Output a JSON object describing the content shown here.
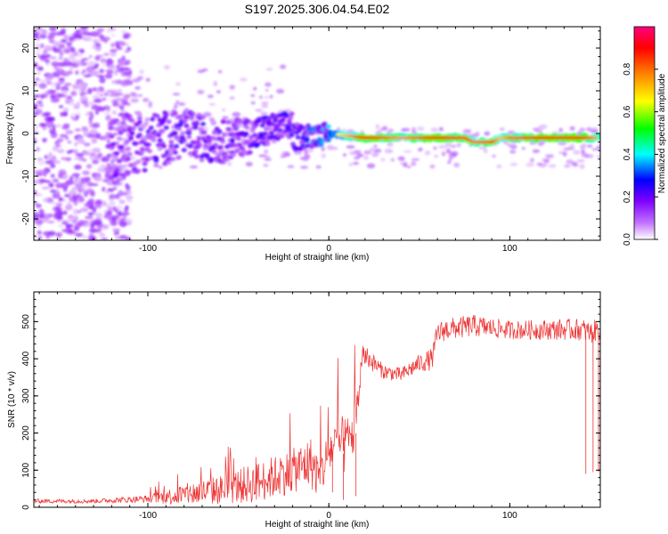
{
  "title": "S197.2025.306.04.54.E02",
  "chart_data": [
    {
      "type": "heatmap",
      "title": "S197.2025.306.04.54.E02",
      "xlabel": "Height of straight line (km)",
      "ylabel": "Frequency (Hz)",
      "xlim": [
        -163,
        150
      ],
      "ylim": [
        -25,
        25
      ],
      "xticks": [
        -100,
        0,
        100
      ],
      "yticks": [
        -20,
        -10,
        0,
        10,
        20
      ],
      "colorbar": {
        "label": "Normalized spectral amplitude",
        "range": [
          0.0,
          1.0
        ],
        "ticks": [
          0.0,
          0.2,
          0.4,
          0.6,
          0.8
        ],
        "tick_labels": [
          "0.0",
          "0.2",
          "0.4",
          "0.6",
          "0.8"
        ],
        "colors": [
          "#ffffff",
          "#a000ff",
          "#0000ff",
          "#00ffff",
          "#00ff00",
          "#ffff00",
          "#ff8000",
          "#ff0000",
          "#ff0080"
        ]
      },
      "ridge": {
        "x": [
          -120,
          -100,
          -80,
          -60,
          -40,
          -20,
          0,
          20,
          40,
          60,
          75,
          80,
          90,
          95,
          100,
          110,
          120,
          140,
          148
        ],
        "frequency": [
          -1,
          -1,
          0,
          -3,
          -2,
          -1,
          0,
          -1,
          -1,
          -1,
          -1,
          -2,
          -2,
          -1,
          -1,
          -1,
          -1,
          -1,
          -1
        ],
        "amplitude": [
          0.25,
          0.3,
          0.35,
          0.3,
          0.35,
          0.4,
          0.55,
          0.9,
          0.75,
          0.9,
          0.85,
          0.8,
          0.85,
          0.7,
          0.8,
          0.85,
          0.9,
          0.9,
          0.75
        ]
      },
      "noise_region": {
        "x_range": [
          -163,
          -120
        ],
        "frequency_range": [
          -25,
          25
        ],
        "amplitude": 0.15
      }
    },
    {
      "type": "line",
      "xlabel": "Height of straight line (km)",
      "ylabel": "SNR (10 * v/v)",
      "xlim": [
        -163,
        150
      ],
      "ylim": [
        0,
        580
      ],
      "xticks": [
        -100,
        0,
        100
      ],
      "yticks": [
        0,
        100,
        200,
        300,
        400,
        500
      ],
      "color": "#ee3333",
      "envelope": {
        "x": [
          -163,
          -130,
          -100,
          -80,
          -60,
          -40,
          -20,
          -10,
          -5,
          0,
          5,
          10,
          15,
          18,
          20,
          25,
          30,
          40,
          50,
          57,
          60,
          65,
          80,
          100,
          140,
          145,
          148,
          150
        ],
        "base": [
          15,
          15,
          20,
          25,
          35,
          50,
          80,
          100,
          60,
          130,
          150,
          140,
          200,
          380,
          400,
          380,
          360,
          350,
          380,
          390,
          460,
          470,
          480,
          470,
          470,
          460,
          470,
          470
        ],
        "amp": [
          12,
          12,
          20,
          60,
          80,
          110,
          120,
          140,
          120,
          130,
          150,
          160,
          150,
          60,
          60,
          50,
          40,
          40,
          50,
          60,
          60,
          60,
          60,
          50,
          60,
          60,
          60,
          60
        ]
      },
      "dropouts": [
        {
          "x": 2,
          "snr": 40
        },
        {
          "x": 8,
          "snr": 20
        },
        {
          "x": 15,
          "snr": 30
        },
        {
          "x": 142,
          "snr": 90
        },
        {
          "x": 146,
          "snr": 95
        },
        {
          "x": 149,
          "snr": 95
        }
      ]
    }
  ]
}
